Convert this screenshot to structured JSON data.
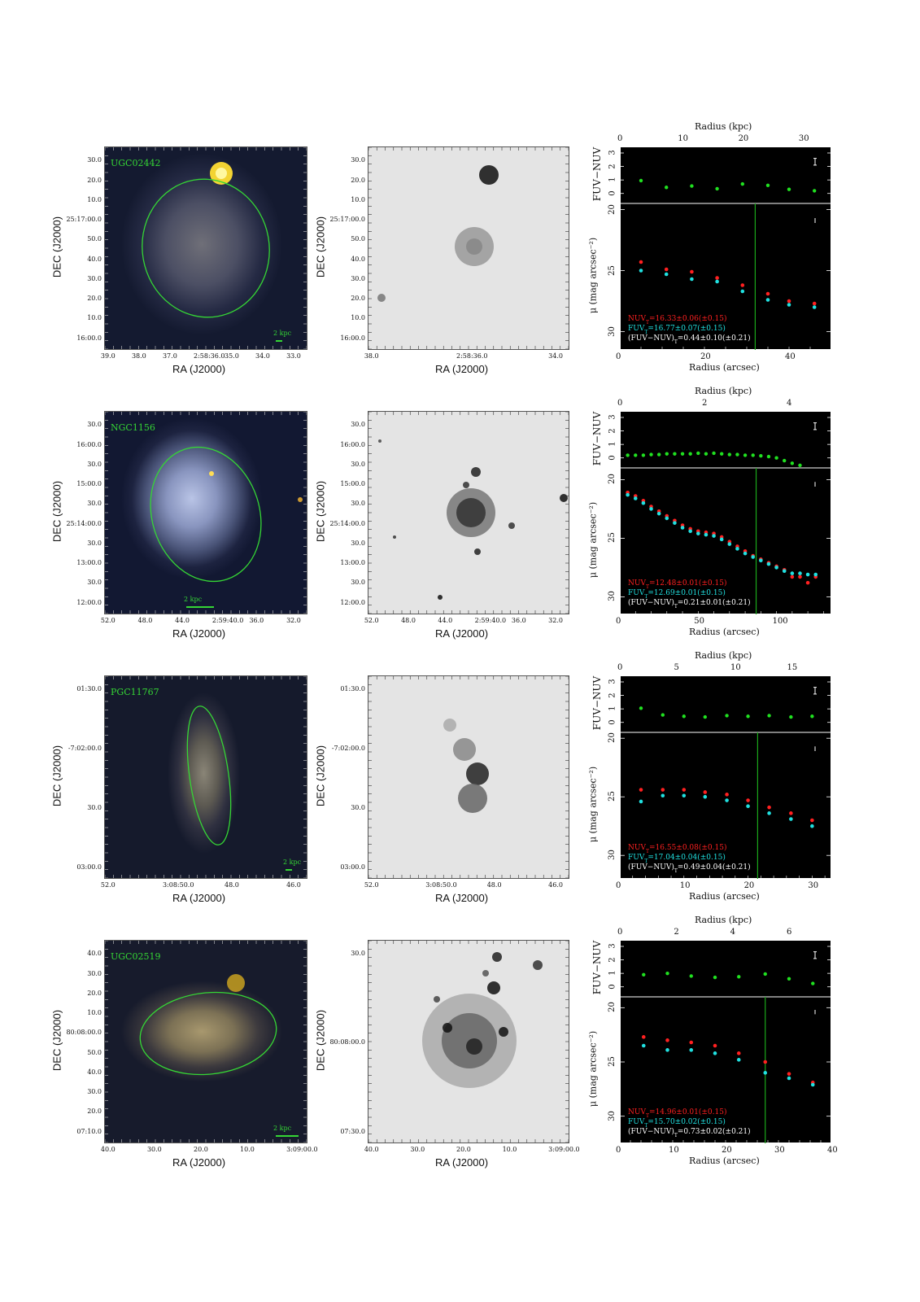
{
  "rows": [
    {
      "name": "UGC02442",
      "ra_ticks": [
        "39.0",
        "38.0",
        "37.0",
        "2:58:36.0",
        "35.0",
        "34.0",
        "33.0"
      ],
      "dec_ticks": [
        "30.0",
        "20.0",
        "10.0",
        "25:17:00.0",
        "50.0",
        "40.0",
        "30.0",
        "20.0",
        "10.0",
        "16:00.0"
      ],
      "ra_ticks_gray": [
        "38.0",
        "2:58:36.0",
        "34.0"
      ],
      "dec_ticks_gray": [
        "30.0",
        "20.0",
        "10.0",
        "25:17:00.0",
        "50.0",
        "40.0",
        "30.0",
        "20.0",
        "10.0",
        "16:00.0"
      ],
      "kpc_label": "2 kpc",
      "profile": {
        "kpc_ticks": [
          "0",
          "10",
          "20",
          "30"
        ],
        "kpc_max": 35,
        "arcsec_ticks": [
          "0",
          "20",
          "40"
        ],
        "arcsec_max": 50,
        "color_ticks": [
          "3",
          "2",
          "1",
          "0"
        ],
        "mu_ticks": [
          "20",
          "25",
          "30"
        ],
        "mu_range": [
          19.5,
          31.5
        ],
        "vline": 32,
        "color_points": [
          [
            5,
            0.95
          ],
          [
            11,
            0.45
          ],
          [
            17,
            0.55
          ],
          [
            23,
            0.35
          ],
          [
            29,
            0.7
          ],
          [
            35,
            0.6
          ],
          [
            40,
            0.3
          ],
          [
            46,
            0.2
          ]
        ],
        "nuv_points": [
          [
            5,
            24.3
          ],
          [
            11,
            24.9
          ],
          [
            17,
            25.1
          ],
          [
            23,
            25.6
          ],
          [
            29,
            26.2
          ],
          [
            35,
            26.9
          ],
          [
            40,
            27.5
          ],
          [
            46,
            27.7
          ]
        ],
        "fuv_points": [
          [
            5,
            25.0
          ],
          [
            11,
            25.3
          ],
          [
            17,
            25.7
          ],
          [
            23,
            25.9
          ],
          [
            29,
            26.7
          ],
          [
            35,
            27.4
          ],
          [
            40,
            27.8
          ],
          [
            46,
            28.0
          ]
        ],
        "nuv_text": "NUV",
        "nuv_value": "=16.33±0.06(±0.15)",
        "fuv_text": "FUV",
        "fuv_value": "=16.77±0.07(±0.15)",
        "diff_text": "(FUV−NUV)",
        "diff_value": "=0.44±0.10(±0.21)",
        "sub": "T"
      }
    },
    {
      "name": "NGC1156",
      "ra_ticks": [
        "52.0",
        "48.0",
        "44.0",
        "2:59:40.0",
        "36.0",
        "32.0"
      ],
      "dec_ticks": [
        "30.0",
        "16:00.0",
        "30.0",
        "15:00.0",
        "30.0",
        "25:14:00.0",
        "30.0",
        "13:00.0",
        "30.0",
        "12:00.0"
      ],
      "ra_ticks_gray": [
        "52.0",
        "48.0",
        "44.0",
        "2:59:40.0",
        "36.0",
        "32.0"
      ],
      "dec_ticks_gray": [
        "30.0",
        "16:00.0",
        "30.0",
        "15:00.0",
        "30.0",
        "25:14:00.0",
        "30.0",
        "13:00.0",
        "30.0",
        "12:00.0"
      ],
      "kpc_label": "2 kpc",
      "profile": {
        "kpc_ticks": [
          "0",
          "2",
          "4"
        ],
        "kpc_max": 5,
        "arcsec_ticks": [
          "0",
          "50",
          "100"
        ],
        "arcsec_max": 135,
        "color_ticks": [
          "3",
          "2",
          "1",
          "0"
        ],
        "mu_ticks": [
          "20",
          "25",
          "30"
        ],
        "mu_range": [
          19.0,
          31.5
        ],
        "vline": 87,
        "color_points": [
          [
            5,
            0.2
          ],
          [
            10,
            0.2
          ],
          [
            15,
            0.2
          ],
          [
            20,
            0.25
          ],
          [
            25,
            0.25
          ],
          [
            30,
            0.3
          ],
          [
            35,
            0.3
          ],
          [
            40,
            0.3
          ],
          [
            45,
            0.3
          ],
          [
            50,
            0.35
          ],
          [
            55,
            0.3
          ],
          [
            60,
            0.35
          ],
          [
            65,
            0.3
          ],
          [
            70,
            0.25
          ],
          [
            75,
            0.25
          ],
          [
            80,
            0.2
          ],
          [
            85,
            0.2
          ],
          [
            90,
            0.15
          ],
          [
            95,
            0.1
          ],
          [
            100,
            0.0
          ],
          [
            105,
            -0.2
          ],
          [
            110,
            -0.4
          ],
          [
            115,
            -0.55
          ]
        ],
        "nuv_points": [
          [
            5,
            21.1
          ],
          [
            10,
            21.4
          ],
          [
            15,
            21.8
          ],
          [
            20,
            22.3
          ],
          [
            25,
            22.7
          ],
          [
            30,
            23.1
          ],
          [
            35,
            23.5
          ],
          [
            40,
            23.9
          ],
          [
            45,
            24.2
          ],
          [
            50,
            24.4
          ],
          [
            55,
            24.5
          ],
          [
            60,
            24.6
          ],
          [
            65,
            24.9
          ],
          [
            70,
            25.3
          ],
          [
            75,
            25.7
          ],
          [
            80,
            26.1
          ],
          [
            85,
            26.5
          ],
          [
            90,
            26.8
          ],
          [
            95,
            27.1
          ],
          [
            100,
            27.4
          ],
          [
            105,
            27.7
          ],
          [
            110,
            28.3
          ],
          [
            115,
            28.3
          ],
          [
            120,
            28.8
          ],
          [
            125,
            28.3
          ]
        ],
        "fuv_points": [
          [
            5,
            21.3
          ],
          [
            10,
            21.6
          ],
          [
            15,
            22.0
          ],
          [
            20,
            22.5
          ],
          [
            25,
            22.9
          ],
          [
            30,
            23.3
          ],
          [
            35,
            23.7
          ],
          [
            40,
            24.1
          ],
          [
            45,
            24.4
          ],
          [
            50,
            24.6
          ],
          [
            55,
            24.7
          ],
          [
            60,
            24.8
          ],
          [
            65,
            25.1
          ],
          [
            70,
            25.5
          ],
          [
            75,
            25.9
          ],
          [
            80,
            26.3
          ],
          [
            85,
            26.6
          ],
          [
            90,
            26.9
          ],
          [
            95,
            27.2
          ],
          [
            100,
            27.5
          ],
          [
            105,
            27.8
          ],
          [
            110,
            28.0
          ],
          [
            115,
            28.0
          ],
          [
            120,
            28.1
          ],
          [
            125,
            28.1
          ]
        ],
        "nuv_text": "NUV",
        "nuv_value": "=12.48±0.01(±0.15)",
        "fuv_text": "FUV",
        "fuv_value": "=12.69±0.01(±0.15)",
        "diff_text": "(FUV−NUV)",
        "diff_value": "=0.21±0.01(±0.21)",
        "sub": "T"
      }
    },
    {
      "name": "PGC11767",
      "ra_ticks": [
        "52.0",
        "3:08:50.0",
        "48.0",
        "46.0"
      ],
      "dec_ticks": [
        "01:30.0",
        "-7:02:00.0",
        "30.0",
        "03:00.0"
      ],
      "ra_ticks_gray": [
        "52.0",
        "3:08:50.0",
        "48.0",
        "46.0"
      ],
      "dec_ticks_gray": [
        "01:30.0",
        "-7:02:00.0",
        "30.0",
        "03:00.0"
      ],
      "kpc_label": "2 kpc",
      "profile": {
        "kpc_ticks": [
          "0",
          "5",
          "10",
          "15"
        ],
        "kpc_max": 18.7,
        "arcsec_ticks": [
          "0",
          "10",
          "20",
          "30"
        ],
        "arcsec_max": 33,
        "color_ticks": [
          "3",
          "2",
          "1",
          "0"
        ],
        "mu_ticks": [
          "20",
          "25",
          "30"
        ],
        "mu_range": [
          19.5,
          32.0
        ],
        "vline": 21.5,
        "color_points": [
          [
            3.3,
            1.05
          ],
          [
            6.7,
            0.55
          ],
          [
            10,
            0.45
          ],
          [
            13.3,
            0.4
          ],
          [
            16.7,
            0.5
          ],
          [
            20,
            0.45
          ],
          [
            23.3,
            0.5
          ],
          [
            26.7,
            0.4
          ],
          [
            30,
            0.45
          ]
        ],
        "nuv_points": [
          [
            3.3,
            24.4
          ],
          [
            6.7,
            24.4
          ],
          [
            10,
            24.4
          ],
          [
            13.3,
            24.6
          ],
          [
            16.7,
            24.8
          ],
          [
            20,
            25.3
          ],
          [
            23.3,
            25.9
          ],
          [
            26.7,
            26.4
          ],
          [
            30,
            27.0
          ]
        ],
        "fuv_points": [
          [
            3.3,
            25.4
          ],
          [
            6.7,
            24.9
          ],
          [
            10,
            24.9
          ],
          [
            13.3,
            25.0
          ],
          [
            16.7,
            25.3
          ],
          [
            20,
            25.8
          ],
          [
            23.3,
            26.4
          ],
          [
            26.7,
            26.9
          ],
          [
            30,
            27.5
          ]
        ],
        "nuv_text": "NUV",
        "nuv_value": "=16.55±0.08(±0.15)",
        "fuv_text": "FUV",
        "fuv_value": "=17.04±0.04(±0.15)",
        "diff_text": "(FUV−NUV)",
        "diff_value": "=0.49±0.04(±0.21)",
        "sub": "T"
      }
    },
    {
      "name": "UGC02519",
      "ra_ticks": [
        "40.0",
        "30.0",
        "20.0",
        "10.0",
        "3:09:00.0"
      ],
      "dec_ticks": [
        "40.0",
        "30.0",
        "20.0",
        "10.0",
        "80:08:00.0",
        "50.0",
        "40.0",
        "30.0",
        "20.0",
        "07:10.0"
      ],
      "ra_ticks_gray": [
        "40.0",
        "30.0",
        "20.0",
        "10.0",
        "3:09:00.0"
      ],
      "dec_ticks_gray": [
        "30.0",
        "80:08:00.0",
        "07:30.0"
      ],
      "kpc_label": "2 kpc",
      "profile": {
        "kpc_ticks": [
          "0",
          "2",
          "4",
          "6"
        ],
        "kpc_max": 7.5,
        "arcsec_ticks": [
          "0",
          "10",
          "20",
          "30",
          "40"
        ],
        "arcsec_max": 40,
        "color_ticks": [
          "3",
          "2",
          "1",
          "0"
        ],
        "mu_ticks": [
          "20",
          "25",
          "30"
        ],
        "mu_range": [
          19.0,
          32.5
        ],
        "vline": 27.5,
        "color_points": [
          [
            4.5,
            0.9
          ],
          [
            9,
            1.0
          ],
          [
            13.5,
            0.8
          ],
          [
            18,
            0.7
          ],
          [
            22.5,
            0.75
          ],
          [
            27.5,
            0.95
          ],
          [
            32,
            0.6
          ],
          [
            36.5,
            0.25
          ]
        ],
        "nuv_points": [
          [
            4.5,
            22.7
          ],
          [
            9,
            23.0
          ],
          [
            13.5,
            23.2
          ],
          [
            18,
            23.5
          ],
          [
            22.5,
            24.2
          ],
          [
            27.5,
            25.0
          ],
          [
            32,
            26.1
          ],
          [
            36.5,
            26.9
          ]
        ],
        "fuv_points": [
          [
            4.5,
            23.5
          ],
          [
            9,
            23.9
          ],
          [
            13.5,
            23.9
          ],
          [
            18,
            24.2
          ],
          [
            22.5,
            24.8
          ],
          [
            27.5,
            26.0
          ],
          [
            32,
            26.5
          ],
          [
            36.5,
            27.1
          ]
        ],
        "nuv_text": "NUV",
        "nuv_value": "=14.96±0.01(±0.15)",
        "fuv_text": "FUV",
        "fuv_value": "=15.70±0.02(±0.15)",
        "diff_text": "(FUV−NUV)",
        "diff_value": "=0.73±0.02(±0.21)",
        "sub": "T"
      }
    }
  ],
  "labels": {
    "ra": "RA (J2000)",
    "dec": "DEC (J2000)",
    "radius_kpc": "Radius (kpc)",
    "radius_arcsec": "Radius (arcsec)",
    "color_axis": "FUV−NUV",
    "mu_axis": "μ (mag arcsec⁻²)"
  },
  "colors": {
    "nuv": "#ff2020",
    "fuv": "#20e0e0",
    "color_pts": "#20e020",
    "ellipse": "#35d635",
    "vline": "#1aa81a"
  }
}
